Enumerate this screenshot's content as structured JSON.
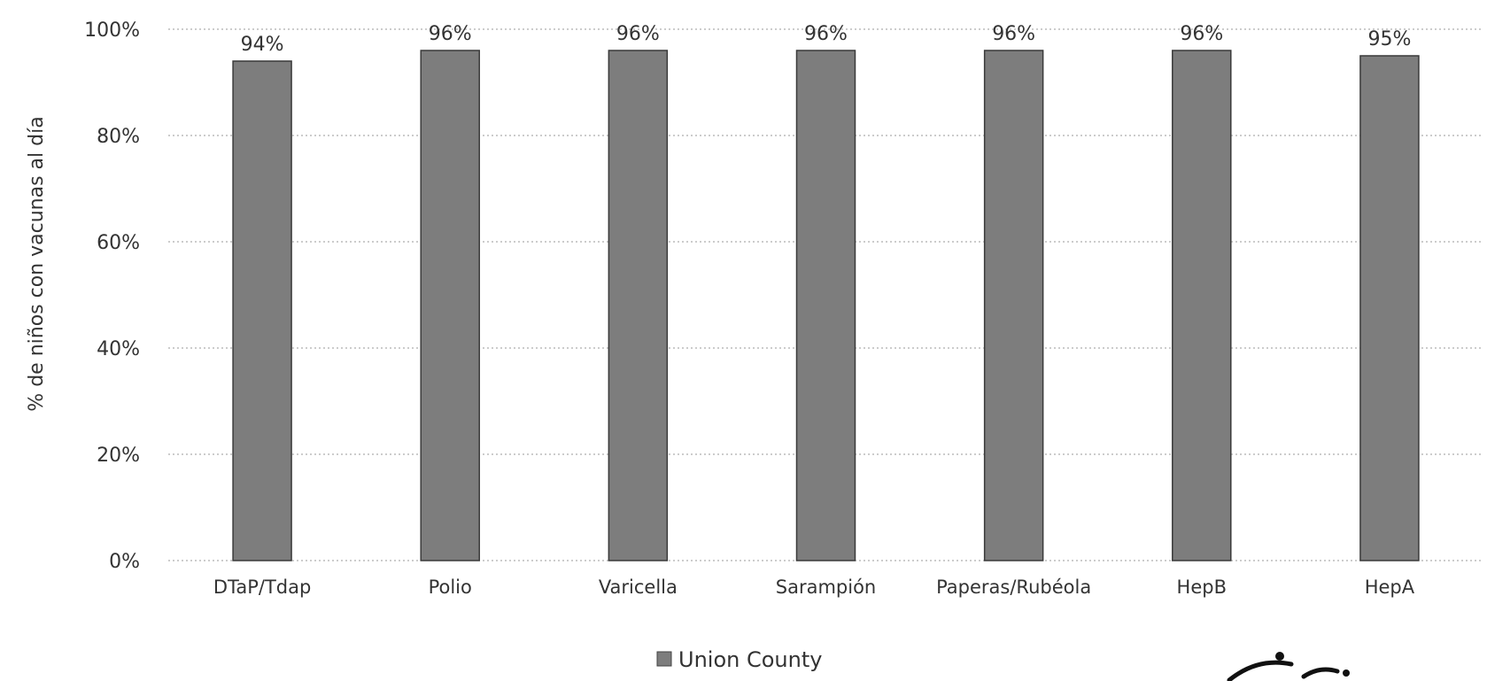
{
  "chart_data": {
    "type": "bar",
    "title": "",
    "xlabel": "",
    "ylabel": "% de niños con vacunas al día",
    "categories": [
      "DTaP/Tdap",
      "Polio",
      "Varicella",
      "Sarampión",
      "Paperas/Rubéola",
      "HepB",
      "HepA"
    ],
    "series": [
      {
        "name": "Union County",
        "values": [
          94,
          96,
          96,
          96,
          96,
          96,
          95
        ]
      }
    ],
    "data_labels": [
      "94%",
      "96%",
      "96%",
      "96%",
      "96%",
      "96%",
      "95%"
    ],
    "ylim": [
      0,
      100
    ],
    "yticks": [
      0,
      20,
      40,
      60,
      80,
      100
    ],
    "ytick_labels": [
      "0%",
      "20%",
      "40%",
      "60%",
      "80%",
      "100%"
    ],
    "grid": true,
    "legend": "bottom-center",
    "colors": {
      "bar": "#7d7d7d",
      "bar_edge": "#3a3a3a",
      "grid": "#9a9a9a"
    }
  }
}
